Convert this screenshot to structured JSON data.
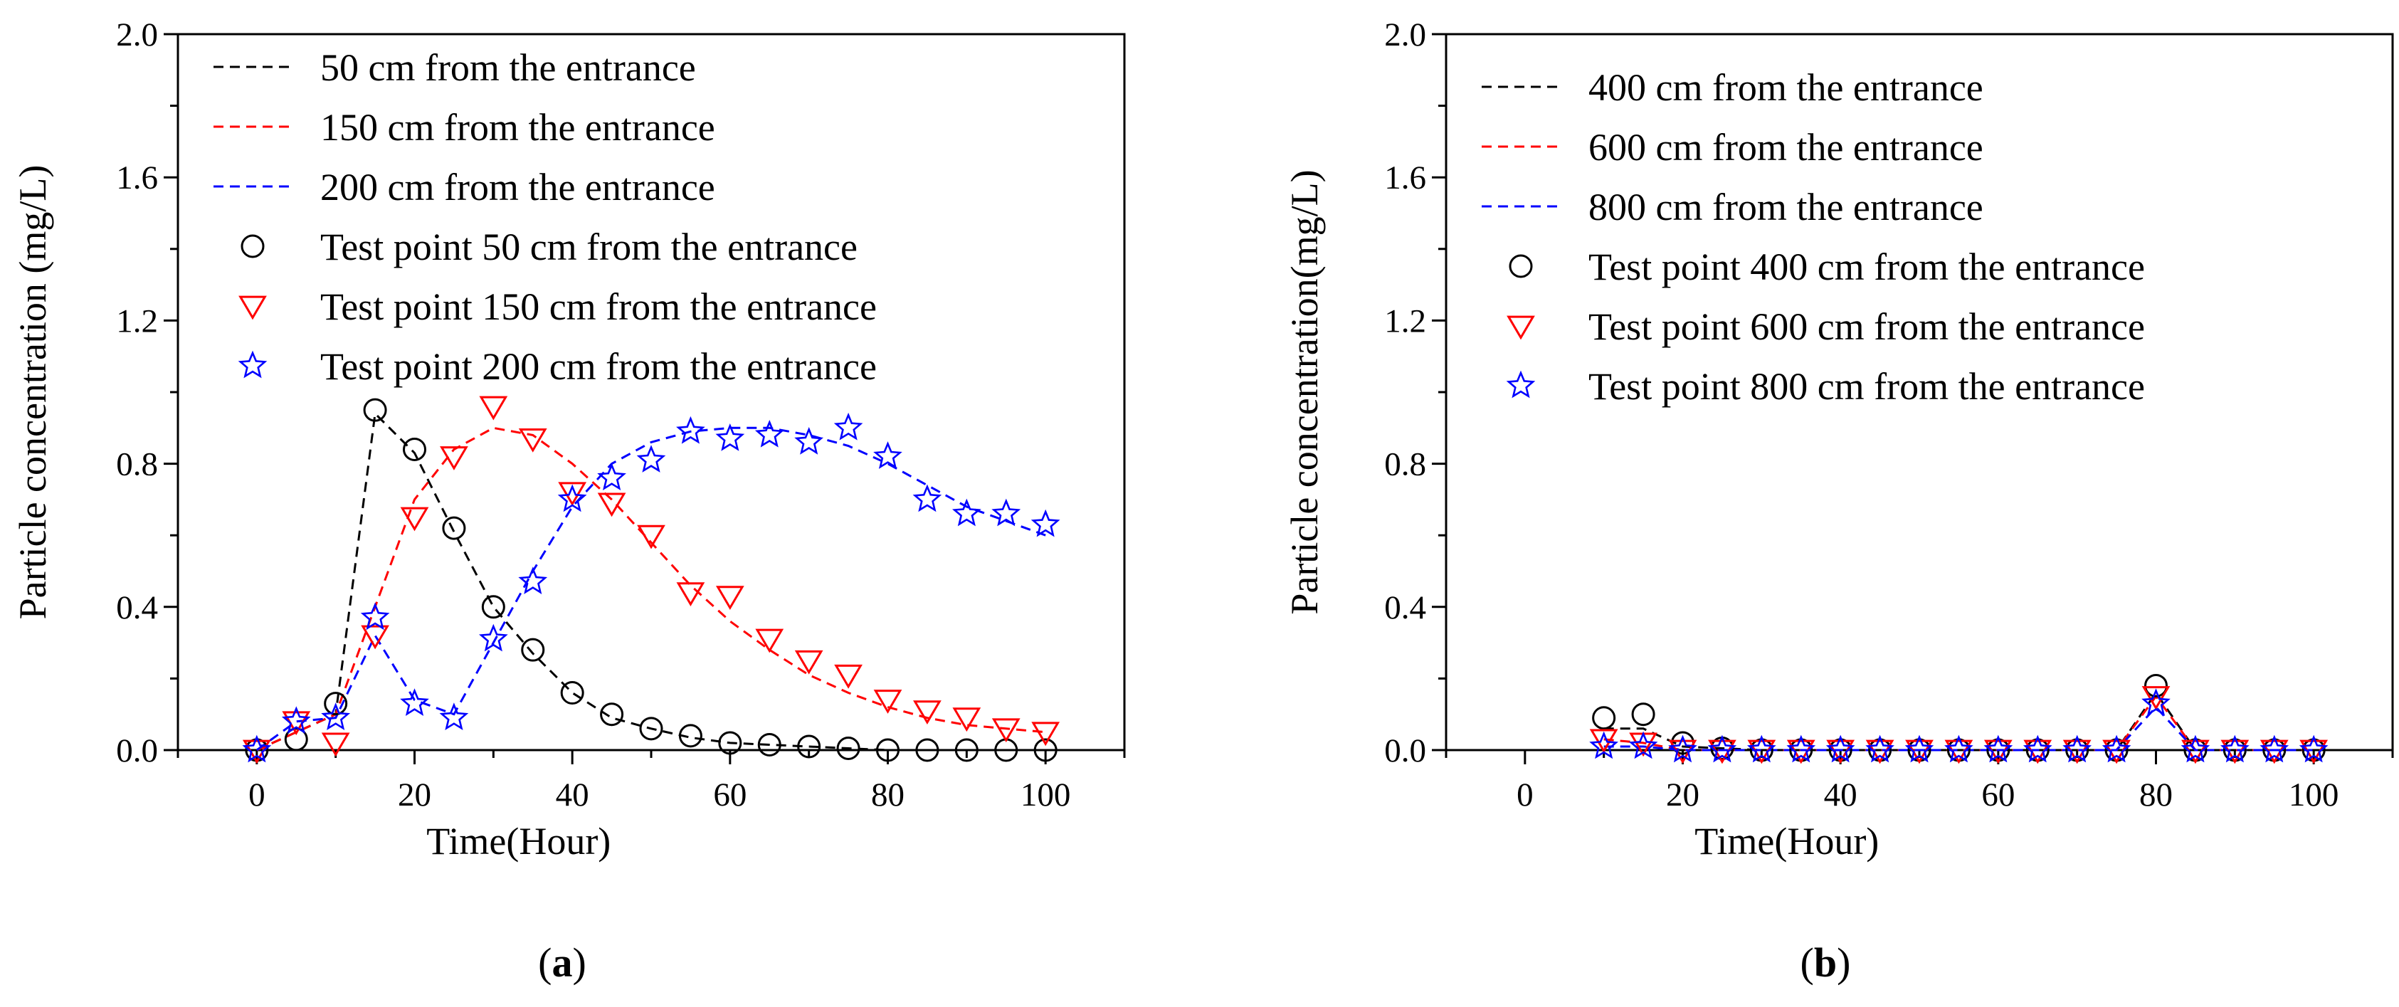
{
  "chart_data": [
    {
      "type": "line",
      "panel_label": "a",
      "xlabel": "Time(Hour)",
      "ylabel": "Particle concentration (mg/L)",
      "xlim": [
        -10,
        110
      ],
      "ylim": [
        0,
        2.0
      ],
      "xticks": [
        0,
        20,
        40,
        60,
        80,
        100
      ],
      "xtick_labels": [
        "0",
        "20",
        "40",
        "60",
        "80",
        "100"
      ],
      "yticks": [
        0.0,
        0.4,
        0.8,
        1.2,
        1.6,
        2.0
      ],
      "ytick_labels": [
        "0.0",
        "0.4",
        "0.8",
        "1.2",
        "1.6",
        "2.0"
      ],
      "grid": false,
      "legend_position": "top-left",
      "series": [
        {
          "name": "50 cm from the entrance",
          "kind": "dashed-line",
          "color": "#000000",
          "x": [
            0,
            5,
            10,
            15,
            20,
            25,
            30,
            35,
            40,
            45,
            50,
            55,
            60,
            65,
            70,
            75,
            80,
            85,
            90,
            95,
            100
          ],
          "y": [
            0.0,
            0.05,
            0.1,
            0.94,
            0.83,
            0.61,
            0.4,
            0.27,
            0.16,
            0.09,
            0.06,
            0.035,
            0.02,
            0.015,
            0.01,
            0.005,
            0.0,
            0.0,
            0.0,
            0.0,
            0.0
          ]
        },
        {
          "name": "150 cm from the entrance",
          "kind": "dashed-line",
          "color": "#ff0000",
          "x": [
            0,
            5,
            10,
            15,
            20,
            25,
            30,
            35,
            40,
            45,
            50,
            55,
            60,
            65,
            70,
            75,
            80,
            85,
            90,
            95,
            100
          ],
          "y": [
            0.0,
            0.05,
            0.1,
            0.4,
            0.7,
            0.84,
            0.9,
            0.88,
            0.8,
            0.7,
            0.58,
            0.46,
            0.36,
            0.28,
            0.21,
            0.16,
            0.12,
            0.09,
            0.07,
            0.06,
            0.05
          ]
        },
        {
          "name": "200 cm from the entrance",
          "kind": "dashed-line",
          "color": "#0000ff",
          "x": [
            0,
            5,
            10,
            15,
            20,
            25,
            30,
            35,
            40,
            45,
            50,
            55,
            60,
            65,
            70,
            75,
            80,
            85,
            90,
            95,
            100
          ],
          "y": [
            0.0,
            0.08,
            0.09,
            0.32,
            0.14,
            0.1,
            0.3,
            0.5,
            0.68,
            0.8,
            0.86,
            0.89,
            0.9,
            0.9,
            0.88,
            0.85,
            0.8,
            0.74,
            0.68,
            0.64,
            0.6
          ]
        },
        {
          "name": "Test point 50 cm from the entrance",
          "kind": "marker",
          "marker": "circle",
          "color": "#000000",
          "x": [
            0,
            5,
            10,
            15,
            20,
            25,
            30,
            35,
            40,
            45,
            50,
            55,
            60,
            65,
            70,
            75,
            80,
            85,
            90,
            95,
            100
          ],
          "y": [
            0.0,
            0.03,
            0.13,
            0.95,
            0.84,
            0.62,
            0.4,
            0.28,
            0.16,
            0.1,
            0.06,
            0.04,
            0.02,
            0.015,
            0.01,
            0.005,
            0.0,
            0.0,
            0.0,
            0.0,
            0.0
          ]
        },
        {
          "name": "Test point 150 cm from the entrance",
          "kind": "marker",
          "marker": "triangle-down",
          "color": "#ff0000",
          "x": [
            0,
            5,
            10,
            15,
            20,
            25,
            30,
            35,
            40,
            45,
            50,
            55,
            60,
            65,
            70,
            75,
            80,
            85,
            90,
            95,
            100
          ],
          "y": [
            0.0,
            0.08,
            0.02,
            0.32,
            0.65,
            0.82,
            0.96,
            0.87,
            0.72,
            0.69,
            0.6,
            0.44,
            0.43,
            0.31,
            0.25,
            0.21,
            0.14,
            0.11,
            0.09,
            0.06,
            0.05
          ]
        },
        {
          "name": "Test point 200 cm from the entrance",
          "kind": "marker",
          "marker": "star",
          "color": "#0000ff",
          "x": [
            0,
            5,
            10,
            15,
            20,
            25,
            30,
            35,
            40,
            45,
            50,
            55,
            60,
            65,
            70,
            75,
            80,
            85,
            90,
            95,
            100
          ],
          "y": [
            0.0,
            0.08,
            0.09,
            0.37,
            0.13,
            0.09,
            0.31,
            0.47,
            0.7,
            0.76,
            0.81,
            0.89,
            0.87,
            0.88,
            0.86,
            0.9,
            0.82,
            0.7,
            0.66,
            0.66,
            0.63
          ]
        }
      ]
    },
    {
      "type": "line",
      "panel_label": "b",
      "xlabel": "Time(Hour)",
      "ylabel": "Particle concentration(mg/L)",
      "xlim": [
        -10,
        110
      ],
      "ylim": [
        0,
        2.0
      ],
      "xticks": [
        0,
        20,
        40,
        60,
        80,
        100
      ],
      "xtick_labels": [
        "0",
        "20",
        "40",
        "60",
        "80",
        "100"
      ],
      "yticks": [
        0.0,
        0.4,
        0.8,
        1.2,
        1.6,
        2.0
      ],
      "ytick_labels": [
        "0.0",
        "0.4",
        "0.8",
        "1.2",
        "1.6",
        "2.0"
      ],
      "grid": false,
      "legend_position": "top-left",
      "series": [
        {
          "name": "400 cm from the entrance",
          "kind": "dashed-line",
          "color": "#000000",
          "x": [
            10,
            15,
            20,
            25,
            30,
            35,
            40,
            45,
            50,
            55,
            60,
            65,
            70,
            75,
            80,
            85,
            90,
            95,
            100
          ],
          "y": [
            0.06,
            0.06,
            0.01,
            0.005,
            0.0,
            0.0,
            0.0,
            0.0,
            0.0,
            0.0,
            0.0,
            0.0,
            0.0,
            0.0,
            0.16,
            0.0,
            0.0,
            0.0,
            0.0
          ]
        },
        {
          "name": "600 cm from the entrance",
          "kind": "dashed-line",
          "color": "#ff0000",
          "x": [
            10,
            15,
            20,
            25,
            30,
            35,
            40,
            45,
            50,
            55,
            60,
            65,
            70,
            75,
            80,
            85,
            90,
            95,
            100
          ],
          "y": [
            0.03,
            0.02,
            0.0,
            0.0,
            0.0,
            0.0,
            0.0,
            0.0,
            0.0,
            0.0,
            0.0,
            0.0,
            0.0,
            0.0,
            0.15,
            0.0,
            0.0,
            0.0,
            0.0
          ]
        },
        {
          "name": "800 cm from the entrance",
          "kind": "dashed-line",
          "color": "#0000ff",
          "x": [
            10,
            15,
            20,
            25,
            30,
            35,
            40,
            45,
            50,
            55,
            60,
            65,
            70,
            75,
            80,
            85,
            90,
            95,
            100
          ],
          "y": [
            0.01,
            0.01,
            0.0,
            0.0,
            0.0,
            0.0,
            0.0,
            0.0,
            0.0,
            0.0,
            0.0,
            0.0,
            0.0,
            0.0,
            0.12,
            0.0,
            0.0,
            0.0,
            0.0
          ]
        },
        {
          "name": "Test point 400 cm from the entrance",
          "kind": "marker",
          "marker": "circle",
          "color": "#000000",
          "x": [
            10,
            15,
            20,
            25,
            30,
            35,
            40,
            45,
            50,
            55,
            60,
            65,
            70,
            75,
            80,
            85,
            90,
            95,
            100
          ],
          "y": [
            0.09,
            0.1,
            0.02,
            0.005,
            0.0,
            0.0,
            0.0,
            0.0,
            0.0,
            0.0,
            0.0,
            0.0,
            0.0,
            0.0,
            0.18,
            0.0,
            0.0,
            0.0,
            0.0
          ]
        },
        {
          "name": "Test point 600 cm from the entrance",
          "kind": "marker",
          "marker": "triangle-down",
          "color": "#ff0000",
          "x": [
            10,
            15,
            20,
            25,
            30,
            35,
            40,
            45,
            50,
            55,
            60,
            65,
            70,
            75,
            80,
            85,
            90,
            95,
            100
          ],
          "y": [
            0.03,
            0.02,
            0.0,
            0.0,
            0.0,
            0.0,
            0.0,
            0.0,
            0.0,
            0.0,
            0.0,
            0.0,
            0.0,
            0.0,
            0.15,
            0.0,
            0.0,
            0.0,
            0.0
          ]
        },
        {
          "name": "Test point 800 cm from the entrance",
          "kind": "marker",
          "marker": "star",
          "color": "#0000ff",
          "x": [
            10,
            15,
            20,
            25,
            30,
            35,
            40,
            45,
            50,
            55,
            60,
            65,
            70,
            75,
            80,
            85,
            90,
            95,
            100
          ],
          "y": [
            0.01,
            0.01,
            0.0,
            0.0,
            0.0,
            0.0,
            0.0,
            0.0,
            0.0,
            0.0,
            0.0,
            0.0,
            0.0,
            0.0,
            0.13,
            0.0,
            0.0,
            0.0,
            0.0
          ]
        }
      ]
    }
  ]
}
